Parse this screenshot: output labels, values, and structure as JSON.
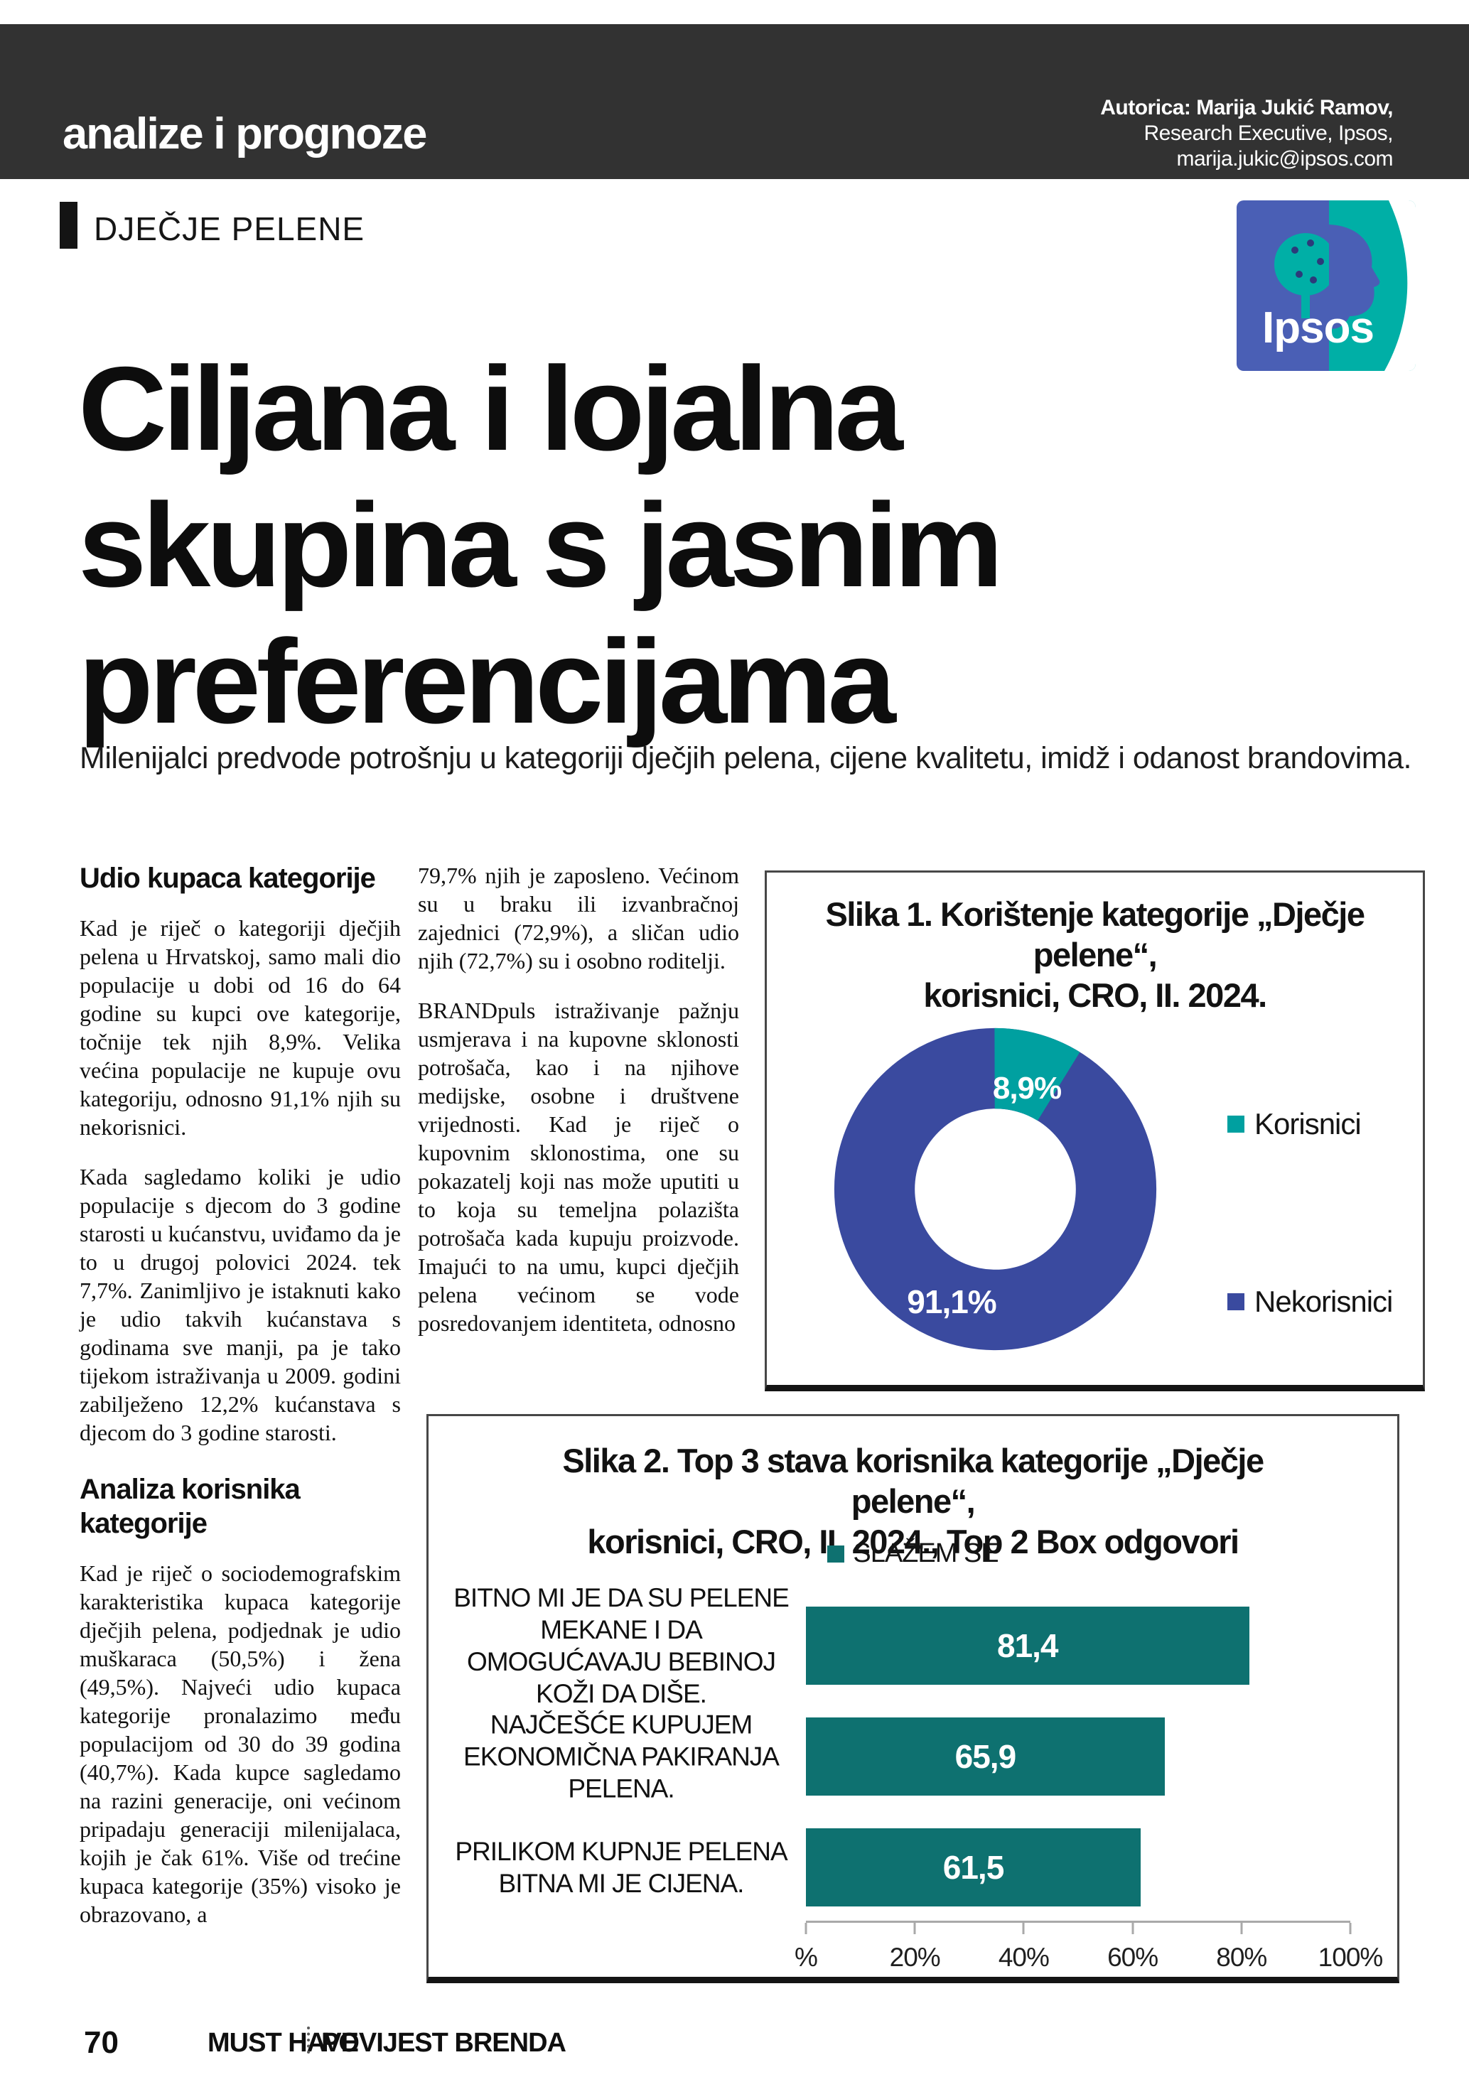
{
  "header": {
    "masthead": "analize i prognoze",
    "author_line1": "Autorica: Marija Jukić Ramov,",
    "author_line2": "Research Executive, Ipsos,",
    "author_line3": "marija.jukic@ipsos.com"
  },
  "logo": {
    "text": "Ipsos",
    "blue": "#4A5FB5",
    "teal": "#00AFA6"
  },
  "article": {
    "kicker": "DJEČJE PELENE",
    "title": "Ciljana i lojalna\nskupina s jasnim\npreferencijama",
    "lede": "Milenijalci predvode potrošnju u kategoriji dječjih pelena, cijene kvalitetu, imidž i odanost brandovima.",
    "col1_heading1": "Udio kupaca kategorije",
    "col1_p1": "Kad je riječ o kategoriji dječjih pelena u Hrvatskoj, samo mali dio populacije u dobi od 16 do 64 godine su kupci ove kategorije, točnije tek njih 8,9%. Velika većina populacije ne kupuje ovu kategoriju, odnosno 91,1% njih su nekorisnici.",
    "col1_p2": "Kada sagledamo koliki je udio populacije s djecom do 3 godine starosti u kućanstvu, uviđamo da je to u drugoj polovici 2024. tek 7,7%. Zanimljivo je istaknuti kako je udio takvih kućanstava s godinama sve manji, pa je tako tijekom istraživanja u 2009. godini zabilježeno 12,2% kućanstava s djecom do 3 godine starosti.",
    "col1_heading2": "Analiza korisnika kategorije",
    "col1_p3": "Kad je riječ o sociodemografskim karakteristika kupaca kategorije dječjih pelena, podjednak je udio muškaraca (50,5%) i žena (49,5%). Najveći udio kupaca kategorije pronalazimo među populacijom od 30 do 39 godina (40,7%). Kada kupce sagledamo na razini generacije, oni većinom pripadaju generaciji milenijalaca, kojih je čak 61%. Više od trećine kupaca kategorije (35%) visoko je obrazovano, a",
    "col2_p1": "79,7% njih je zaposleno. Većinom su u braku ili izvanbračnoj zajednici (72,9%), a sličan udio njih (72,7%) su i osobno roditelji.",
    "col2_p2": "BRANDpuls istraživanje pažnju usmjerava i na kupovne sklonosti potrošača, kao i na njihove medijske, osobne i društvene vrijednosti. Kad je riječ o kupovnim sklonostima, one su pokazatelj koji nas može uputiti u to koja su temeljna polazišta potrošača kada kupuju proizvode. Imajući to na umu, kupci dječjih pelena većinom se vode posredovanjem identiteta, odnosno"
  },
  "chart_data": [
    {
      "type": "pie",
      "subtype": "donut",
      "title": "Slika 1. Korištenje kategorije „Dječje pelene“,\nkorisnici, CRO, II. 2024.",
      "legend_position": "right",
      "slices": [
        {
          "label": "Korisnici",
          "value": 8.9,
          "display": "8,9%",
          "color": "#00A0A0"
        },
        {
          "label": "Nekorisnici",
          "value": 91.1,
          "display": "91,1%",
          "color": "#3A4A9F"
        }
      ]
    },
    {
      "type": "bar",
      "orientation": "horizontal",
      "title": "Slika 2. Top 3 stava korisnika kategorije „Dječje pelene“,\nkorisnici, CRO, II. 2024., Top 2 Box odgovori",
      "legend": [
        {
          "label": "SLAŽEM SE",
          "color": "#0E7170"
        }
      ],
      "categories": [
        "BITNO MI JE DA SU PELENE MEKANE I DA OMOGUĆAVAJU BEBINOJ KOŽI DA DIŠE.",
        "NAJČEŠĆE KUPUJEM EKONOMIČNA PAKIRANJA PELENA.",
        "PRILIKOM KUPNJE PELENA BITNA MI JE CIJENA."
      ],
      "values": [
        81.4,
        65.9,
        61.5
      ],
      "value_labels": [
        "81,4",
        "65,9",
        "61,5"
      ],
      "xlim": [
        0,
        100
      ],
      "x_ticks": [
        "%",
        "20%",
        "40%",
        "60%",
        "80%",
        "100%"
      ],
      "grid": false
    }
  ],
  "footer": {
    "page_number": "70",
    "brand": "MUST HAVE",
    "section": "POVIJEST BRENDA"
  }
}
